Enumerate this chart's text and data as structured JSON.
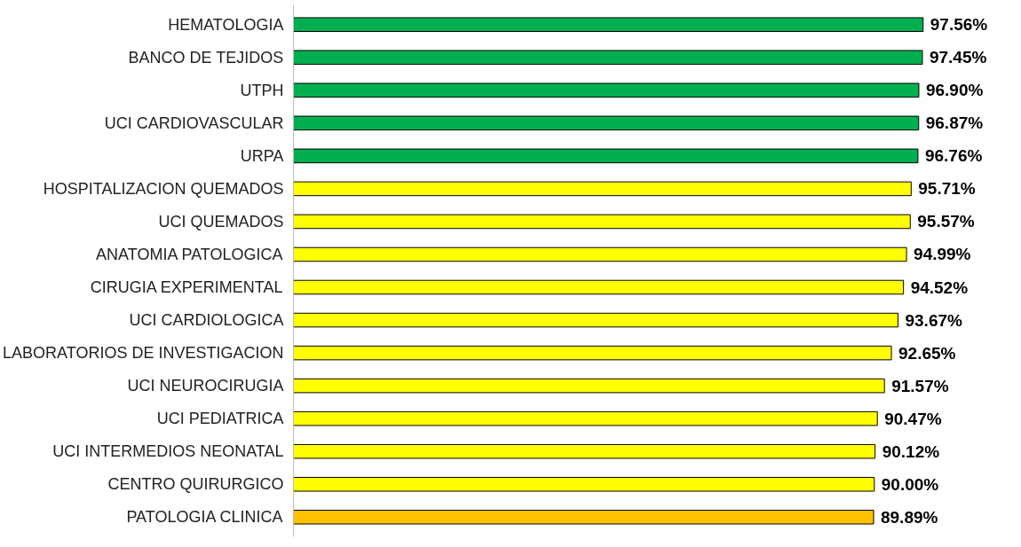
{
  "chart_data": {
    "type": "bar",
    "orientation": "horizontal",
    "grid": false,
    "categories": [
      "HEMATOLOGIA",
      "BANCO DE TEJIDOS",
      "UTPH",
      "UCI CARDIOVASCULAR",
      "URPA",
      "HOSPITALIZACION QUEMADOS",
      "UCI QUEMADOS",
      "ANATOMIA PATOLOGICA",
      "CIRUGIA EXPERIMENTAL",
      "UCI CARDIOLOGICA",
      "LABORATORIOS DE INVESTIGACION",
      "UCI NEUROCIRUGIA",
      "UCI PEDIATRICA",
      "UCI INTERMEDIOS NEONATAL",
      "CENTRO QUIRURGICO",
      "PATOLOGIA CLINICA"
    ],
    "values": [
      97.56,
      97.45,
      96.9,
      96.87,
      96.76,
      95.71,
      95.57,
      94.99,
      94.52,
      93.67,
      92.65,
      91.57,
      90.47,
      90.12,
      90.0,
      89.89
    ],
    "value_labels": [
      "97.56%",
      "97.45%",
      "96.90%",
      "96.87%",
      "96.76%",
      "95.71%",
      "95.57%",
      "94.99%",
      "94.52%",
      "93.67%",
      "92.65%",
      "91.57%",
      "90.47%",
      "90.12%",
      "90.00%",
      "89.89%"
    ],
    "colors": [
      "#00b050",
      "#00b050",
      "#00b050",
      "#00b050",
      "#00b050",
      "#ffff00",
      "#ffff00",
      "#ffff00",
      "#ffff00",
      "#ffff00",
      "#ffff00",
      "#ffff00",
      "#ffff00",
      "#ffff00",
      "#ffff00",
      "#ffc000"
    ]
  }
}
